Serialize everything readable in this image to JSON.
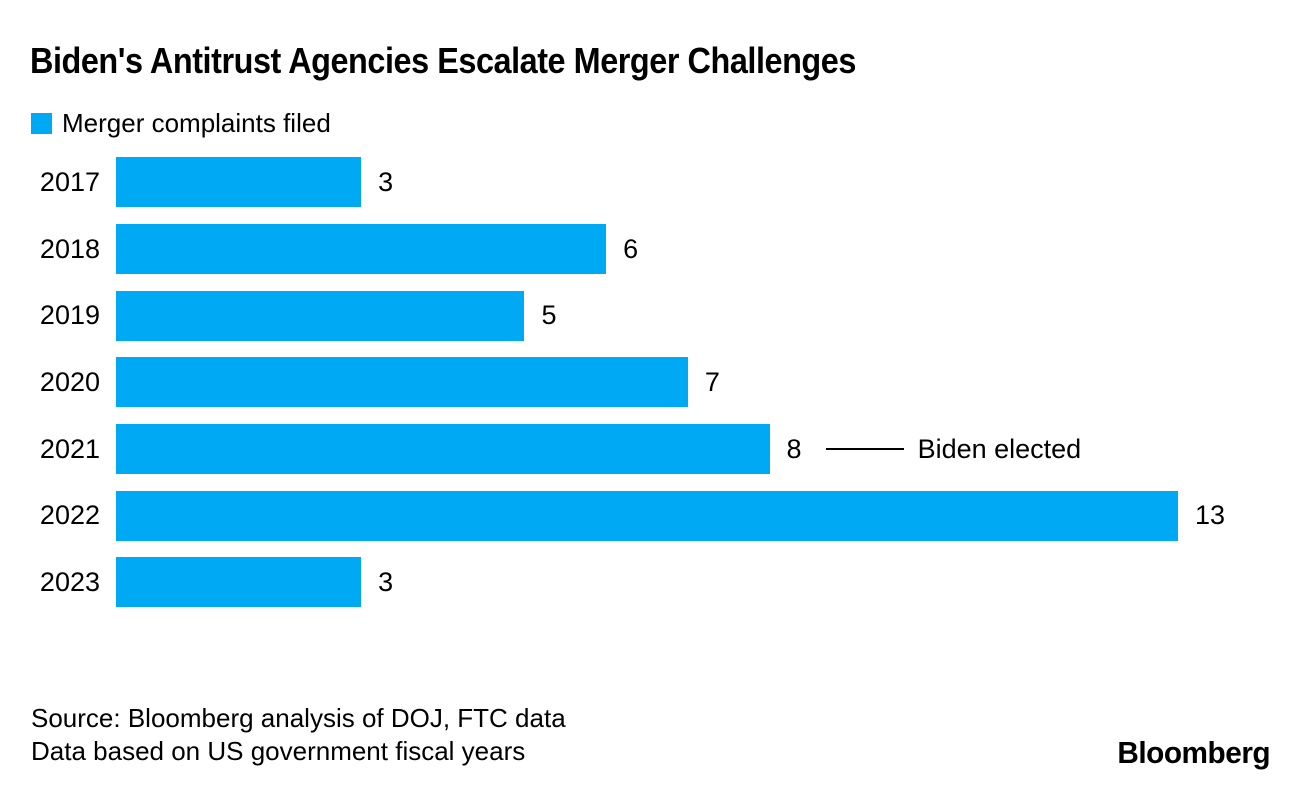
{
  "header": {
    "title": "Biden's Antitrust Agencies Escalate Merger Challenges"
  },
  "legend": {
    "label": "Merger complaints filed",
    "swatch_color": "#00a9f4"
  },
  "chart_data": {
    "type": "bar",
    "orientation": "horizontal",
    "title": "Biden's Antitrust Agencies Escalate Merger Challenges",
    "legend_entries": [
      "Merger complaints filed"
    ],
    "categories": [
      "2017",
      "2018",
      "2019",
      "2020",
      "2021",
      "2022",
      "2023"
    ],
    "values": [
      3,
      6,
      5,
      7,
      8,
      13,
      3
    ],
    "xlim": [
      0,
      13
    ],
    "bar_color": "#00a9f4",
    "grid": false,
    "data_labels": [
      "3",
      "6",
      "5",
      "7",
      "8",
      "13",
      "3"
    ],
    "annotation": {
      "category": "2021",
      "text": "Biden elected"
    }
  },
  "footer": {
    "source_line1": "Source: Bloomberg analysis of DOJ, FTC data",
    "source_line2": "Data based on US government fiscal years",
    "logo_text": "Bloomberg"
  }
}
